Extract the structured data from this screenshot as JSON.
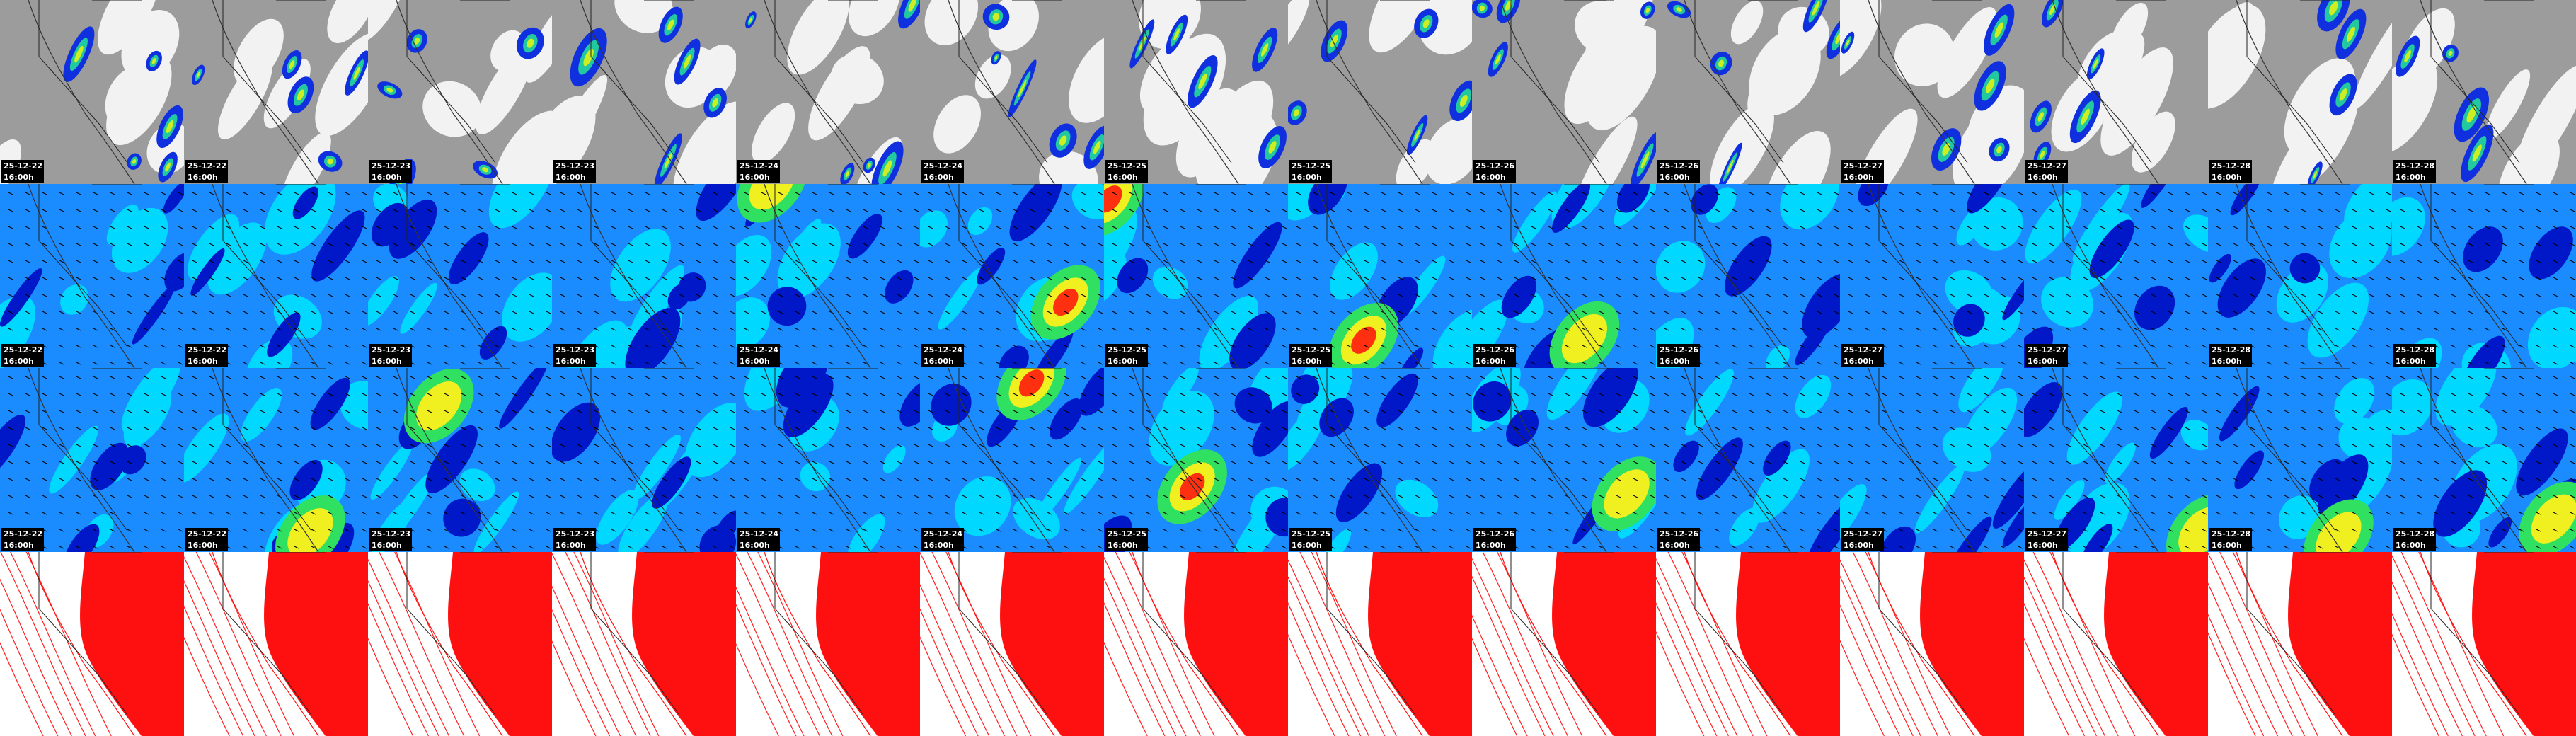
{
  "grid": {
    "rows": [
      {
        "cells": [
          {
            "date": "25-12-22",
            "time": "16:00h"
          },
          {
            "date": "25-12-22",
            "time": "16:00h"
          },
          {
            "date": "25-12-23",
            "time": "16:00h"
          },
          {
            "date": "25-12-23",
            "time": "16:00h"
          },
          {
            "date": "25-12-24",
            "time": "16:00h"
          },
          {
            "date": "25-12-24",
            "time": "16:00h"
          },
          {
            "date": "25-12-25",
            "time": "16:00h"
          },
          {
            "date": "25-12-25",
            "time": "16:00h"
          },
          {
            "date": "25-12-26",
            "time": "16:00h"
          },
          {
            "date": "25-12-26",
            "time": "16:00h"
          },
          {
            "date": "25-12-27",
            "time": "16:00h"
          },
          {
            "date": "25-12-27",
            "time": "16:00h"
          },
          {
            "date": "25-12-28",
            "time": "16:00h"
          },
          {
            "date": "25-12-28",
            "time": "16:00h"
          }
        ]
      },
      {
        "cells": [
          {
            "date": "25-12-22",
            "time": "16:00h"
          },
          {
            "date": "25-12-22",
            "time": "16:00h"
          },
          {
            "date": "25-12-23",
            "time": "16:00h"
          },
          {
            "date": "25-12-23",
            "time": "16:00h"
          },
          {
            "date": "25-12-24",
            "time": "16:00h"
          },
          {
            "date": "25-12-24",
            "time": "16:00h"
          },
          {
            "date": "25-12-25",
            "time": "16:00h"
          },
          {
            "date": "25-12-25",
            "time": "16:00h"
          },
          {
            "date": "25-12-26",
            "time": "16:00h"
          },
          {
            "date": "25-12-26",
            "time": "16:00h"
          },
          {
            "date": "25-12-27",
            "time": "16:00h"
          },
          {
            "date": "25-12-27",
            "time": "16:00h"
          },
          {
            "date": "25-12-28",
            "time": "16:00h"
          },
          {
            "date": "25-12-28",
            "time": "16:00h"
          }
        ]
      },
      {
        "cells": [
          {
            "date": "25-12-22",
            "time": "16:00h"
          },
          {
            "date": "25-12-22",
            "time": "16:00h"
          },
          {
            "date": "25-12-23",
            "time": "16:00h"
          },
          {
            "date": "25-12-23",
            "time": "16:00h"
          },
          {
            "date": "25-12-24",
            "time": "16:00h"
          },
          {
            "date": "25-12-24",
            "time": "16:00h"
          },
          {
            "date": "25-12-25",
            "time": "16:00h"
          },
          {
            "date": "25-12-25",
            "time": "16:00h"
          },
          {
            "date": "25-12-26",
            "time": "16:00h"
          },
          {
            "date": "25-12-26",
            "time": "16:00h"
          },
          {
            "date": "25-12-27",
            "time": "16:00h"
          },
          {
            "date": "25-12-27",
            "time": "16:00h"
          },
          {
            "date": "25-12-28",
            "time": "16:00h"
          },
          {
            "date": "25-12-28",
            "time": "16:00h"
          }
        ]
      }
    ]
  }
}
